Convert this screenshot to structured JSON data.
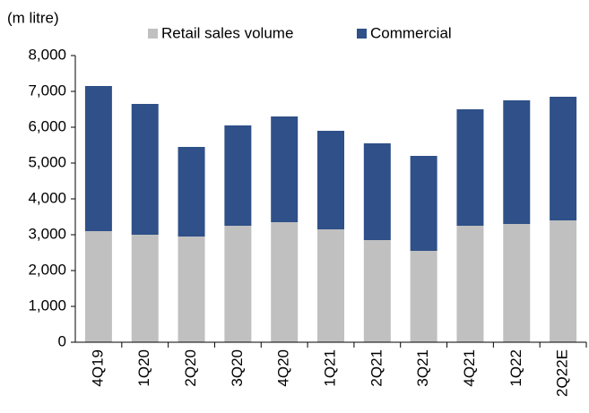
{
  "chart_data": {
    "type": "stacked_bar",
    "y_axis_label": "(m litre)",
    "categories": [
      "4Q19",
      "1Q20",
      "2Q20",
      "3Q20",
      "4Q20",
      "1Q21",
      "2Q21",
      "3Q21",
      "4Q21",
      "1Q22",
      "2Q22E"
    ],
    "series": [
      {
        "name": "Retail sales volume",
        "color": "#c0c0c0",
        "values": [
          3100,
          3000,
          2950,
          3250,
          3350,
          3150,
          2850,
          2550,
          3250,
          3300,
          3400
        ]
      },
      {
        "name": "Commercial",
        "color": "#2f5088",
        "values": [
          4050,
          3650,
          2500,
          2800,
          2950,
          2750,
          2700,
          2650,
          3250,
          3450,
          3450
        ]
      }
    ],
    "ylim": [
      0,
      8000
    ],
    "yticks": [
      0,
      {
        "value": 1000,
        "label": "1,000"
      },
      {
        "value": 2000,
        "label": "2,000"
      },
      {
        "value": 3000,
        "label": "3,000"
      },
      {
        "value": 4000,
        "label": "4,000"
      },
      {
        "value": 5000,
        "label": "5,000"
      },
      {
        "value": 6000,
        "label": "6,000"
      },
      {
        "value": 7000,
        "label": "7,000"
      },
      {
        "value": 8000,
        "label": "8,000"
      }
    ],
    "legend": "top"
  }
}
